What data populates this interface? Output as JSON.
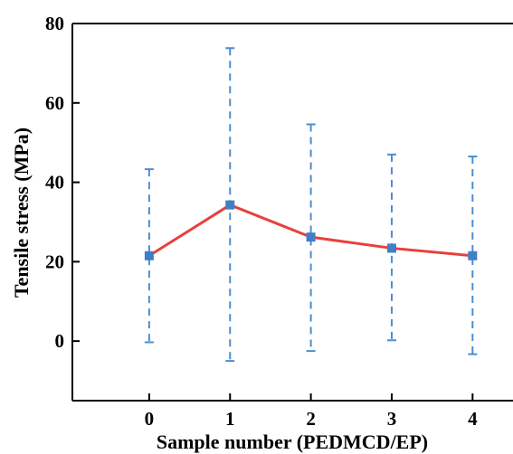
{
  "chart_data": {
    "type": "line",
    "xlabel": "Sample number (PEDMCD/EP)",
    "ylabel": "Tensile stress (MPa)",
    "x": [
      0,
      1,
      2,
      3,
      4
    ],
    "x_tick_labels": [
      "0",
      "1",
      "2",
      "3",
      "4"
    ],
    "y_ticks": [
      0,
      20,
      40,
      60,
      80
    ],
    "y_tick_labels": [
      "0",
      "20",
      "40",
      "60",
      "80"
    ],
    "xlim": [
      -0.95,
      4.5
    ],
    "ylim": [
      -15,
      80
    ],
    "grid": false,
    "series": [
      {
        "values": [
          21.5,
          34.3,
          26.2,
          23.4,
          21.5
        ],
        "error_low": [
          -0.3,
          -5.0,
          -2.5,
          0.2,
          -3.3
        ],
        "error_high": [
          43.3,
          73.8,
          54.6,
          47.0,
          46.5
        ],
        "line_color": "#e8403a",
        "marker_color": "#3f7fc8",
        "error_color": "#4a8fd0",
        "marker": "square"
      }
    ]
  }
}
